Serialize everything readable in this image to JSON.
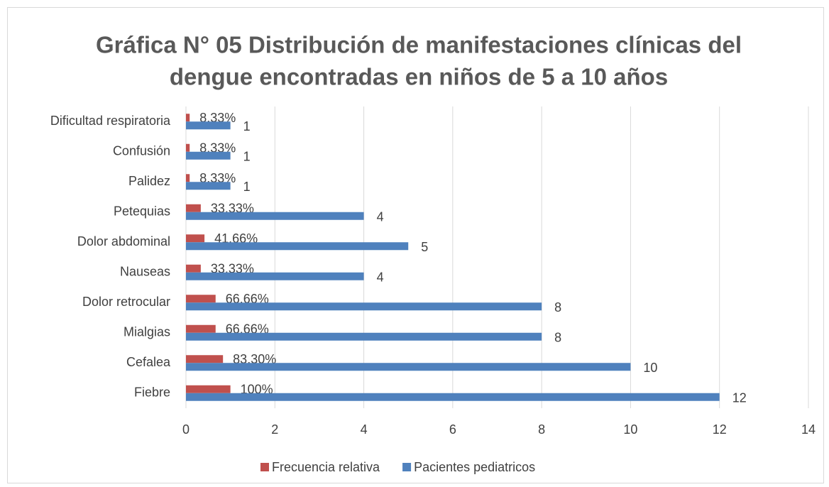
{
  "chart_data": {
    "type": "bar",
    "orientation": "horizontal",
    "title": [
      "Gráfica N° 05 Distribución de manifestaciones clínicas del",
      "dengue encontradas en niños de 5 a 10 años"
    ],
    "categories": [
      "Fiebre",
      "Cefalea",
      "Mialgias",
      "Dolor retrocular",
      "Nauseas",
      "Dolor abdominal",
      "Petequias",
      "Palidez",
      "Confusión",
      "Dificultad respiratoria"
    ],
    "series": [
      {
        "name": "Frecuencia relativa",
        "color": "#c0504d",
        "values": [
          1,
          0.833,
          0.6666,
          0.6666,
          0.3333,
          0.4166,
          0.3333,
          0.0833,
          0.0833,
          0.0833
        ],
        "value_labels": [
          "100%",
          "83.30%",
          "66.66%",
          "66.66%",
          "33.33%",
          "41.66%",
          "33.33%",
          "8.33%",
          "8.33%",
          "8.33%"
        ]
      },
      {
        "name": "Pacientes pediatricos",
        "color": "#4f81bd",
        "values": [
          12,
          10,
          8,
          8,
          4,
          5,
          4,
          1,
          1,
          1
        ]
      }
    ],
    "xlim": [
      0,
      14
    ],
    "xticks": [
      0,
      2,
      4,
      6,
      8,
      10,
      12,
      14
    ],
    "grid": true,
    "legend": "bottom"
  }
}
